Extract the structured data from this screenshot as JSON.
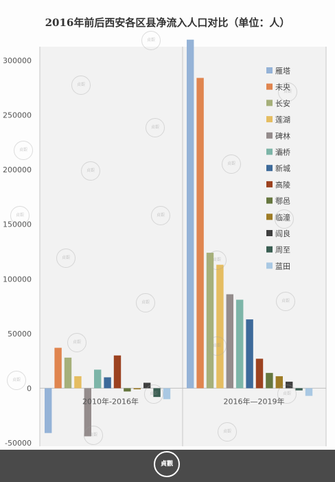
{
  "chart_data": {
    "type": "bar",
    "title": "2016年前后西安各区县净流入人口对比（单位：人）",
    "categories": [
      "2010年-2016年",
      "2016年—2019年"
    ],
    "ylim": [
      -50000,
      300000
    ],
    "yticks": [
      300000,
      250000,
      200000,
      150000,
      100000,
      50000,
      0,
      -50000
    ],
    "grid": false,
    "legend_position": "right",
    "series": [
      {
        "name": "雁塔",
        "color": "#95b3d7",
        "values": [
          -41000,
          319000
        ]
      },
      {
        "name": "未央",
        "color": "#e0854f",
        "values": [
          37000,
          284000
        ]
      },
      {
        "name": "长安",
        "color": "#a6b07a",
        "values": [
          28000,
          124000
        ]
      },
      {
        "name": "莲湖",
        "color": "#e5bd61",
        "values": [
          11000,
          113000
        ]
      },
      {
        "name": "碑林",
        "color": "#948c8c",
        "values": [
          -44000,
          86000
        ]
      },
      {
        "name": "灞桥",
        "color": "#7db5a8",
        "values": [
          17000,
          81000
        ]
      },
      {
        "name": "新城",
        "color": "#3d6a9a",
        "values": [
          10000,
          63000
        ]
      },
      {
        "name": "高陵",
        "color": "#9c4220",
        "values": [
          30000,
          27000
        ]
      },
      {
        "name": "鄠邑",
        "color": "#66773f",
        "values": [
          -3000,
          14000
        ]
      },
      {
        "name": "临潼",
        "color": "#9e7c26",
        "values": [
          -1000,
          11000
        ]
      },
      {
        "name": "阎良",
        "color": "#404040",
        "values": [
          5000,
          6000
        ]
      },
      {
        "name": "周至",
        "color": "#3a5e52",
        "values": [
          -8000,
          -2000
        ]
      },
      {
        "name": "蓝田",
        "color": "#a9c8e3",
        "values": [
          -10000,
          -7000
        ]
      }
    ]
  },
  "watermark": {
    "text": "貞觀"
  }
}
